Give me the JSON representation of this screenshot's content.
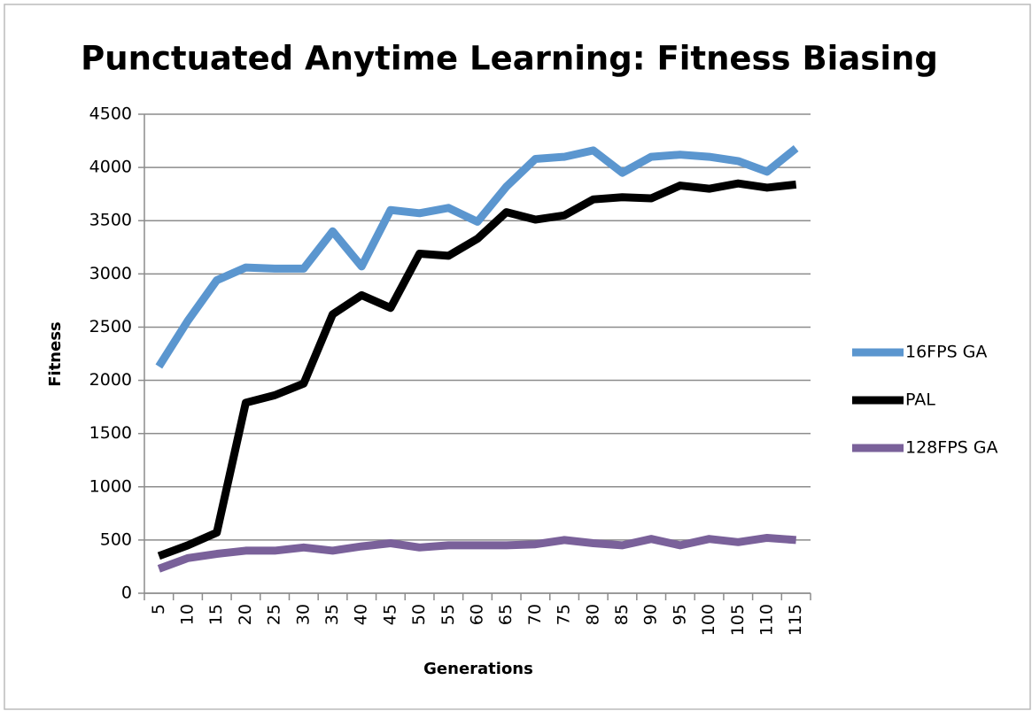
{
  "chart_data": {
    "type": "line",
    "title": "Punctuated Anytime Learning: Fitness Biasing",
    "x_label": "Generations",
    "y_label": "Fitness",
    "categories": [
      "5",
      "10",
      "15",
      "20",
      "25",
      "30",
      "35",
      "40",
      "45",
      "50",
      "55",
      "60",
      "65",
      "70",
      "75",
      "80",
      "85",
      "90",
      "95",
      "100",
      "105",
      "110",
      "115"
    ],
    "series": [
      {
        "name": "16FPS GA",
        "color": "#5b96cf",
        "values": [
          2130,
          2560,
          2940,
          3060,
          3050,
          3050,
          3400,
          3070,
          3600,
          3570,
          3620,
          3490,
          3820,
          4080,
          4100,
          4160,
          3950,
          4100,
          4120,
          4100,
          4060,
          3960,
          4180
        ]
      },
      {
        "name": "PAL",
        "color": "#000000",
        "values": [
          350,
          450,
          570,
          1790,
          1860,
          1970,
          2620,
          2800,
          2680,
          3190,
          3170,
          3330,
          3580,
          3510,
          3550,
          3700,
          3720,
          3710,
          3830,
          3800,
          3850,
          3810,
          3840
        ]
      },
      {
        "name": "128FPS GA",
        "color": "#7a619a",
        "values": [
          230,
          330,
          370,
          400,
          400,
          430,
          400,
          440,
          470,
          430,
          450,
          450,
          450,
          460,
          500,
          470,
          450,
          510,
          450,
          510,
          480,
          520,
          500
        ]
      }
    ],
    "ylim": [
      0,
      4500
    ],
    "yticks": [
      0,
      500,
      1000,
      1500,
      2000,
      2500,
      3000,
      3500,
      4000,
      4500
    ],
    "grid": true,
    "legend": "right"
  }
}
